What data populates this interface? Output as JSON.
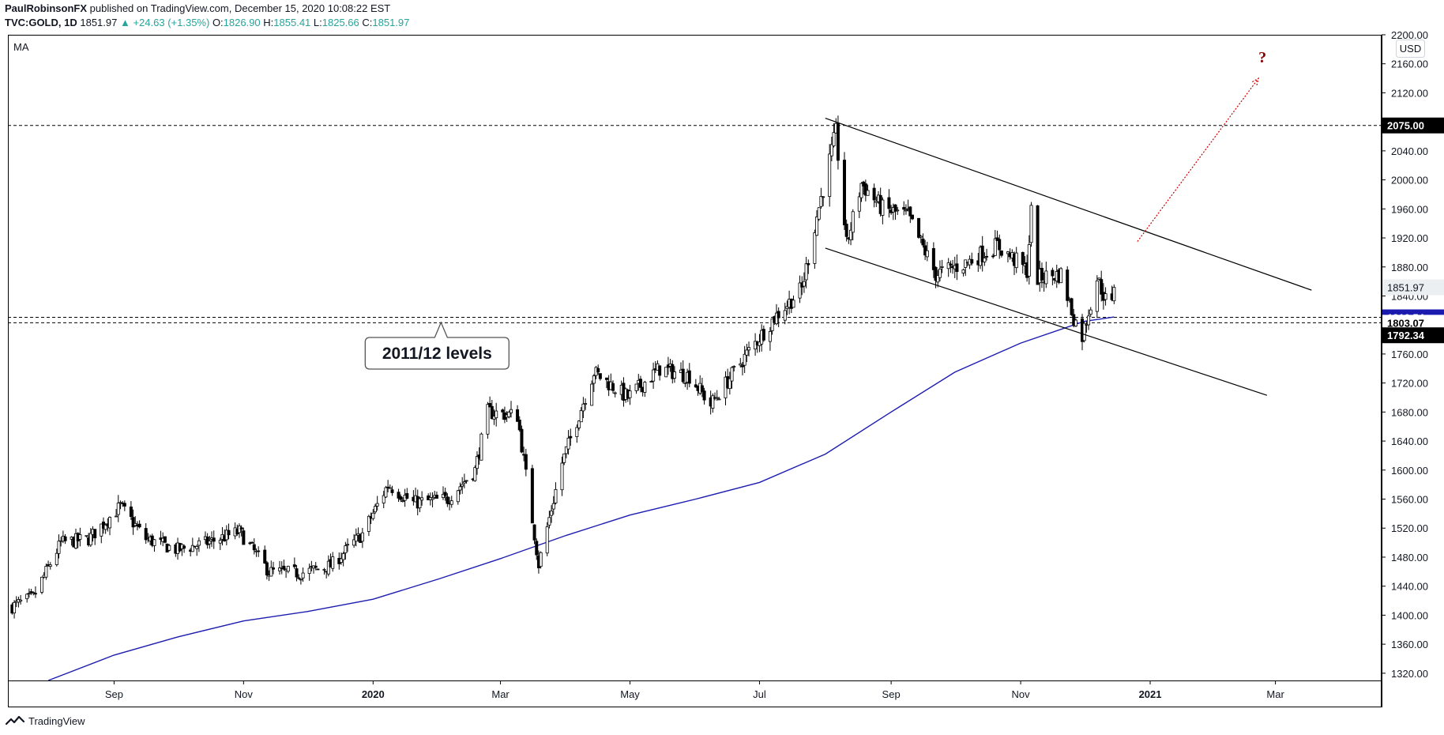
{
  "header": {
    "author": "PaulRobinsonFX",
    "published": "published on TradingView.com, December 15, 2020 10:08:22 EST",
    "symbol": "TVC:GOLD, 1D",
    "last": "1851.97",
    "change": "▲ +24.63 (+1.35%)",
    "o_label": "O:",
    "o_val": "1826.90",
    "h_label": "H:",
    "h_val": "1855.41",
    "l_label": "L:",
    "l_val": "1825.66",
    "c_label": "C:",
    "c_val": "1851.97"
  },
  "indicator_label": "MA",
  "currency_button": "USD",
  "annotation": "2011/12 levels",
  "question_mark": "?",
  "footer": {
    "brand": "TradingView"
  },
  "colors": {
    "candle": "#000000",
    "ma": "#1c1cb0",
    "projection": "#cc0000",
    "question": "#8b0000",
    "axis_label_dark": "#000000",
    "axis_label_blue": "#1a1aae"
  },
  "chart_data": {
    "type": "candlestick",
    "symbol": "TVC:GOLD",
    "interval": "1D",
    "x_tick_labels": [
      "Sep",
      "Nov",
      "2020",
      "Mar",
      "May",
      "Jul",
      "Sep",
      "Nov",
      "2021",
      "Mar"
    ],
    "x_tick_dates": [
      "2019-09-01",
      "2019-11-01",
      "2020-01-01",
      "2020-03-01",
      "2020-05-01",
      "2020-07-01",
      "2020-09-01",
      "2020-11-01",
      "2021-01-01",
      "2021-03-01"
    ],
    "x_range": [
      "2019-07-13",
      "2021-04-20"
    ],
    "y_range": [
      1310,
      2200
    ],
    "y_ticks": [
      1320,
      1360,
      1400,
      1440,
      1480,
      1520,
      1560,
      1600,
      1640,
      1680,
      1720,
      1760,
      1800,
      1840,
      1880,
      1920,
      1960,
      2000,
      2040,
      2080,
      2120,
      2160,
      2200
    ],
    "y_tick_labels": [
      "1320.00",
      "1360.00",
      "1400.00",
      "1440.00",
      "1480.00",
      "1520.00",
      "1560.00",
      "1600.00",
      "1640.00",
      "1680.00",
      "1720.00",
      "1760.00",
      "1800.00",
      "1840.00",
      "1880.00",
      "1920.00",
      "1960.00",
      "2000.00",
      "2040.00",
      "2080.00",
      "2120.00",
      "2160.00",
      "2200.00"
    ],
    "price_path": [
      {
        "date": "2019-07-15",
        "close": 1412
      },
      {
        "date": "2019-07-25",
        "close": 1425
      },
      {
        "date": "2019-08-07",
        "close": 1500
      },
      {
        "date": "2019-08-20",
        "close": 1505
      },
      {
        "date": "2019-09-04",
        "close": 1550
      },
      {
        "date": "2019-09-16",
        "close": 1505
      },
      {
        "date": "2019-10-01",
        "close": 1490
      },
      {
        "date": "2019-10-15",
        "close": 1500
      },
      {
        "date": "2019-10-30",
        "close": 1515
      },
      {
        "date": "2019-11-13",
        "close": 1460
      },
      {
        "date": "2019-11-28",
        "close": 1458
      },
      {
        "date": "2019-12-12",
        "close": 1468
      },
      {
        "date": "2019-12-27",
        "close": 1512
      },
      {
        "date": "2020-01-08",
        "close": 1580
      },
      {
        "date": "2020-01-20",
        "close": 1555
      },
      {
        "date": "2020-02-05",
        "close": 1560
      },
      {
        "date": "2020-02-18",
        "close": 1600
      },
      {
        "date": "2020-02-24",
        "close": 1680
      },
      {
        "date": "2020-03-09",
        "close": 1675
      },
      {
        "date": "2020-03-19",
        "close": 1470
      },
      {
        "date": "2020-03-30",
        "close": 1610
      },
      {
        "date": "2020-04-14",
        "close": 1735
      },
      {
        "date": "2020-04-30",
        "close": 1700
      },
      {
        "date": "2020-05-15",
        "close": 1740
      },
      {
        "date": "2020-05-29",
        "close": 1730
      },
      {
        "date": "2020-06-08",
        "close": 1690
      },
      {
        "date": "2020-06-25",
        "close": 1760
      },
      {
        "date": "2020-07-08",
        "close": 1810
      },
      {
        "date": "2020-07-21",
        "close": 1850
      },
      {
        "date": "2020-07-28",
        "close": 1950
      },
      {
        "date": "2020-08-06",
        "close": 2065
      },
      {
        "date": "2020-08-11",
        "close": 1910
      },
      {
        "date": "2020-08-18",
        "close": 1995
      },
      {
        "date": "2020-08-28",
        "close": 1960
      },
      {
        "date": "2020-09-09",
        "close": 1950
      },
      {
        "date": "2020-09-22",
        "close": 1870
      },
      {
        "date": "2020-10-06",
        "close": 1885
      },
      {
        "date": "2020-10-21",
        "close": 1910
      },
      {
        "date": "2020-11-04",
        "close": 1875
      },
      {
        "date": "2020-11-06",
        "close": 1955
      },
      {
        "date": "2020-11-09",
        "close": 1865
      },
      {
        "date": "2020-11-20",
        "close": 1870
      },
      {
        "date": "2020-11-26",
        "close": 1810
      },
      {
        "date": "2020-11-30",
        "close": 1785
      },
      {
        "date": "2020-12-07",
        "close": 1865
      },
      {
        "date": "2020-12-11",
        "close": 1835
      },
      {
        "date": "2020-12-14",
        "close": 1827
      },
      {
        "date": "2020-12-15",
        "close": 1851.97
      }
    ],
    "moving_average": [
      {
        "date": "2019-08-01",
        "value": 1310
      },
      {
        "date": "2019-09-01",
        "value": 1345
      },
      {
        "date": "2019-10-01",
        "value": 1370
      },
      {
        "date": "2019-11-01",
        "value": 1392
      },
      {
        "date": "2019-12-01",
        "value": 1405
      },
      {
        "date": "2020-01-01",
        "value": 1422
      },
      {
        "date": "2020-02-01",
        "value": 1450
      },
      {
        "date": "2020-03-01",
        "value": 1478
      },
      {
        "date": "2020-04-01",
        "value": 1510
      },
      {
        "date": "2020-05-01",
        "value": 1538
      },
      {
        "date": "2020-06-01",
        "value": 1560
      },
      {
        "date": "2020-07-01",
        "value": 1583
      },
      {
        "date": "2020-08-01",
        "value": 1622
      },
      {
        "date": "2020-09-01",
        "value": 1680
      },
      {
        "date": "2020-10-01",
        "value": 1735
      },
      {
        "date": "2020-11-01",
        "value": 1775
      },
      {
        "date": "2020-12-01",
        "value": 1805
      },
      {
        "date": "2020-12-15",
        "value": 1811
      }
    ],
    "horizontal_levels": [
      2075.0,
      1810.54,
      1803.07
    ],
    "price_labels": [
      {
        "value": 2075.0,
        "text": "2075.00",
        "style": "dark"
      },
      {
        "value": 1851.97,
        "text": "1851.97",
        "style": "light"
      },
      {
        "value": 1810.54,
        "text": "1810.54",
        "style": "blue"
      },
      {
        "value": 1803.07,
        "text": "1803.07",
        "style": "plain"
      },
      {
        "value": 1792.34,
        "text": "1792.34",
        "style": "dark"
      }
    ],
    "channel_upper": [
      {
        "date": "2020-08-01",
        "price": 2085
      },
      {
        "date": "2021-03-18",
        "price": 1848
      }
    ],
    "channel_lower": [
      {
        "date": "2020-08-01",
        "price": 1906
      },
      {
        "date": "2021-02-25",
        "price": 1703
      }
    ],
    "projection_arrow": [
      {
        "date": "2020-12-26",
        "price": 1915
      },
      {
        "date": "2021-02-21",
        "price": 2140
      }
    ],
    "annotation_anchor": {
      "date": "2020-02-02",
      "price": 1810
    }
  }
}
